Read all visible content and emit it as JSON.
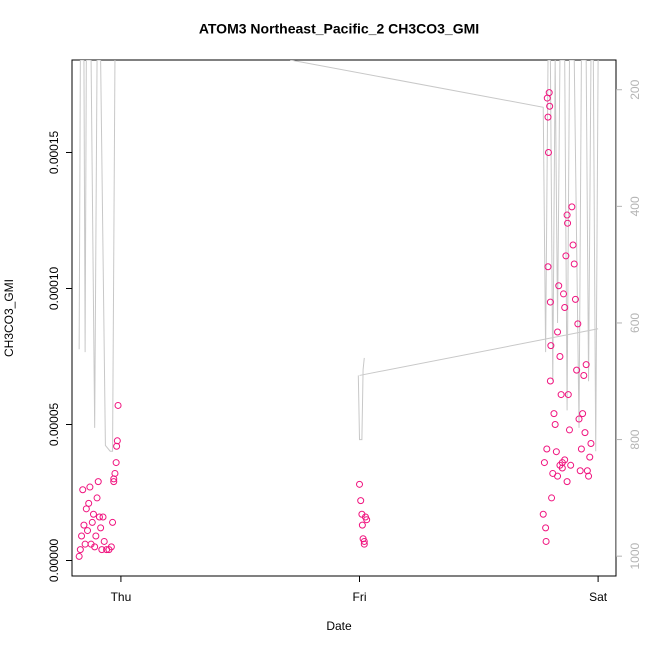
{
  "chart_data": {
    "type": "scatter",
    "title": "ATOM3 Northeast_Pacific_2 CH3CO3_GMI",
    "x_label": "Date",
    "y_label": "CH3CO3_GMI",
    "xlim": [
      -0.205,
      2.075
    ],
    "xticks": [
      {
        "value": 0,
        "label": "Thu"
      },
      {
        "value": 1,
        "label": "Fri"
      },
      {
        "value": 2,
        "label": "Sat"
      }
    ],
    "ylim": [
      -5.7e-06,
      0.000184
    ],
    "yticks": [
      {
        "value": 0,
        "label": "0.00000"
      },
      {
        "value": 5e-05,
        "label": "0.00005"
      },
      {
        "value": 0.0001,
        "label": "0.00010"
      },
      {
        "value": 0.00015,
        "label": "0.00015"
      }
    ],
    "y2lim": [
      1034,
      149
    ],
    "y2ticks": [
      200,
      400,
      600,
      800,
      1000
    ],
    "y2_color": "#b4b4b4",
    "series": [
      {
        "type": "scatter",
        "color": "#f0147f",
        "x": [
          -0.175,
          -0.17,
          -0.165,
          -0.16,
          -0.155,
          -0.15,
          -0.145,
          -0.14,
          -0.135,
          -0.13,
          -0.125,
          -0.12,
          -0.115,
          -0.11,
          -0.105,
          -0.1,
          -0.095,
          -0.09,
          -0.085,
          -0.08,
          -0.075,
          -0.07,
          -0.06,
          -0.05,
          -0.04,
          -0.035,
          -0.03,
          -0.025,
          -0.02,
          -0.018,
          -0.015,
          -0.012,
          -0.03,
          1.0,
          1.005,
          1.01,
          1.012,
          1.015,
          1.02,
          1.025,
          1.03,
          1.02,
          1.77,
          1.775,
          1.78,
          1.782,
          1.785,
          1.787,
          1.79,
          1.79,
          1.792,
          1.795,
          1.797,
          1.8,
          1.8,
          1.802,
          1.805,
          1.81,
          1.815,
          1.82,
          1.825,
          1.83,
          1.835,
          1.84,
          1.845,
          1.85,
          1.855,
          1.86,
          1.865,
          1.87,
          1.872,
          1.875,
          1.88,
          1.885,
          1.89,
          1.895,
          1.9,
          1.905,
          1.91,
          1.915,
          1.92,
          1.925,
          1.93,
          1.935,
          1.94,
          1.945,
          1.95,
          1.955,
          1.96,
          1.965,
          1.97,
          1.85,
          1.84,
          1.83,
          1.86,
          1.87
        ],
        "values": [
          1.5e-06,
          4e-06,
          9e-06,
          2.6e-05,
          1.3e-05,
          6e-06,
          1.9e-05,
          1.1e-05,
          2.1e-05,
          2.7e-05,
          6e-06,
          1.4e-05,
          1.7e-05,
          5e-06,
          9e-06,
          2.3e-05,
          2.9e-05,
          1.6e-05,
          1.2e-05,
          4e-06,
          1.6e-05,
          7e-06,
          4e-06,
          4e-06,
          5e-06,
          1.4e-05,
          2.9e-05,
          3.2e-05,
          3.6e-05,
          4.2e-05,
          4.4e-05,
          5.7e-05,
          3e-05,
          2.8e-05,
          2.2e-05,
          1.7e-05,
          1.3e-05,
          8e-06,
          7e-06,
          1.6e-05,
          1.5e-05,
          6e-06,
          1.7e-05,
          3.6e-05,
          1.2e-05,
          7e-06,
          4.1e-05,
          0.00017,
          0.000163,
          0.000108,
          0.00015,
          0.000172,
          0.000167,
          9.5e-05,
          6.6e-05,
          7.9e-05,
          2.3e-05,
          3.2e-05,
          5.4e-05,
          5e-05,
          4e-05,
          8.4e-05,
          0.000101,
          7.5e-05,
          6.1e-05,
          3.6e-05,
          9.8e-05,
          9.3e-05,
          0.000112,
          0.000127,
          0.000124,
          6.1e-05,
          4.8e-05,
          3.5e-05,
          0.00013,
          0.000116,
          0.000109,
          9.6e-05,
          7e-05,
          8.7e-05,
          5.2e-05,
          3.3e-05,
          4.1e-05,
          5.4e-05,
          6.8e-05,
          4.7e-05,
          7.2e-05,
          3.3e-05,
          3.1e-05,
          3.8e-05,
          4.3e-05,
          3.4e-05,
          3.5e-05,
          3.1e-05,
          3.7e-05,
          2.9e-05
        ]
      },
      {
        "type": "line",
        "axis": "y2",
        "color": "#c8c8c8",
        "x": [
          -0.175,
          -0.17,
          -0.155,
          -0.15,
          -0.145,
          -0.125,
          -0.11,
          -0.1,
          -0.085,
          -0.065,
          -0.045,
          -0.035,
          -0.025,
          null,
          0.71,
          1.77,
          1.78,
          1.79,
          1.8,
          1.81,
          1.82,
          1.83,
          1.84,
          1.86,
          1.87,
          1.88,
          1.9,
          1.92,
          1.93,
          1.95,
          1.96,
          1.97,
          1.98,
          1.99,
          2.0,
          null,
          0.995,
          1.0,
          1.01,
          1.015,
          1.02,
          null,
          1.0,
          2.0
        ],
        "values": [
          645,
          149,
          149,
          650,
          149,
          149,
          780,
          149,
          149,
          810,
          820,
          820,
          149,
          null,
          149,
          230,
          650,
          149,
          149,
          700,
          149,
          600,
          149,
          149,
          750,
          149,
          149,
          780,
          149,
          149,
          700,
          149,
          149,
          820,
          149,
          null,
          690,
          800,
          800,
          680,
          660,
          null,
          690,
          610
        ]
      }
    ]
  }
}
